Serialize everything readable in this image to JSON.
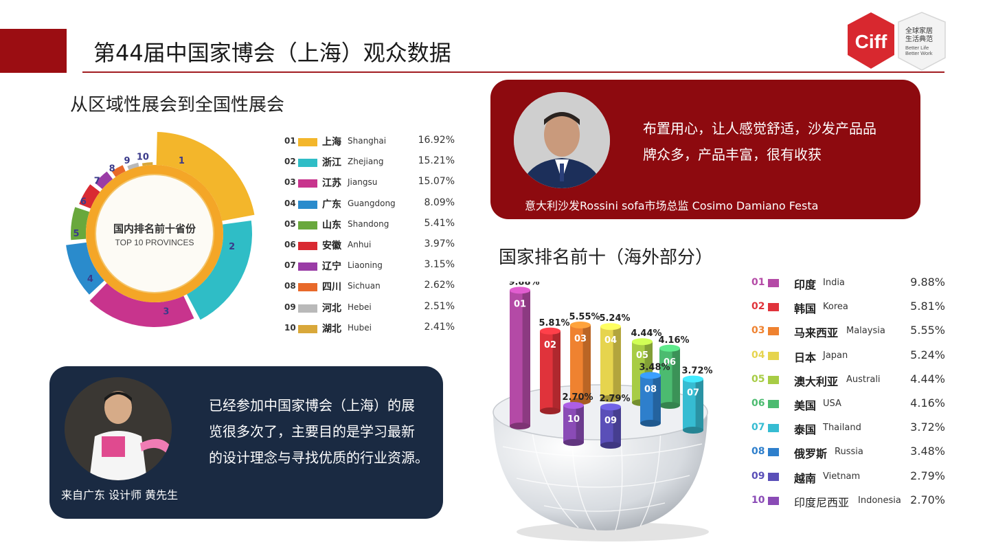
{
  "header": {
    "title": "第44届中国家博会（上海）观众数据",
    "logo": {
      "mark": "Ciff",
      "zh_line1": "全球家居",
      "zh_line2": "生活典范",
      "en_line1": "Better Life",
      "en_line2": "Better Work"
    }
  },
  "provinces_section": {
    "title": "从区域性展会到全国性展会",
    "donut_center_zh": "国内排名前十省份",
    "donut_center_en": "TOP 10 PROVINCES"
  },
  "overseas_section": {
    "title": "国家排名前十（海外部分）"
  },
  "quote_top": {
    "line1": "布置用心，让人感觉舒适，沙发产品品",
    "line2": "牌众多，产品丰富，很有收获",
    "signature": "意大利沙发Rossini sofa市场总监 Cosimo Damiano Festa"
  },
  "quote_bottom": {
    "line1": "已经参加中国家博会（上海）的展",
    "line2": "览很多次了，主要目的是学习最新",
    "line3": "的设计理念与寻找优质的行业资源。",
    "signature": "来自广东 设计师 黄先生"
  },
  "chart_data": [
    {
      "type": "pie",
      "title": "国内排名前十省份 TOP 10 PROVINCES",
      "unit": "%",
      "categories": [
        {
          "rank": "01",
          "label_zh": "上海",
          "label_en": "Shanghai",
          "value": 16.92,
          "pct": "16.92%",
          "color": "#f3b62b"
        },
        {
          "rank": "02",
          "label_zh": "浙江",
          "label_en": "Zhejiang",
          "value": 15.21,
          "pct": "15.21%",
          "color": "#2fbdc6"
        },
        {
          "rank": "03",
          "label_zh": "江苏",
          "label_en": "Jiangsu",
          "value": 15.07,
          "pct": "15.07%",
          "color": "#c8348d"
        },
        {
          "rank": "04",
          "label_zh": "广东",
          "label_en": "Guangdong",
          "value": 8.09,
          "pct": "8.09%",
          "color": "#2a8bcc"
        },
        {
          "rank": "05",
          "label_zh": "山东",
          "label_en": "Shandong",
          "value": 5.41,
          "pct": "5.41%",
          "color": "#69a83c"
        },
        {
          "rank": "06",
          "label_zh": "安徽",
          "label_en": "Anhui",
          "value": 3.97,
          "pct": "3.97%",
          "color": "#d92a32"
        },
        {
          "rank": "07",
          "label_zh": "辽宁",
          "label_en": "Liaoning",
          "value": 3.15,
          "pct": "3.15%",
          "color": "#9a3ca6"
        },
        {
          "rank": "08",
          "label_zh": "四川",
          "label_en": "Sichuan",
          "value": 2.62,
          "pct": "2.62%",
          "color": "#e8692a"
        },
        {
          "rank": "09",
          "label_zh": "河北",
          "label_en": "Hebei",
          "value": 2.51,
          "pct": "2.51%",
          "color": "#b9b9b9"
        },
        {
          "rank": "10",
          "label_zh": "湖北",
          "label_en": "Hubei",
          "value": 2.41,
          "pct": "2.41%",
          "color": "#d9a83a"
        }
      ],
      "slice_labels": [
        "1",
        "2",
        "3",
        "4",
        "5",
        "6",
        "7",
        "8",
        "9",
        "10"
      ],
      "legend": "right"
    },
    {
      "type": "bar",
      "title": "国家排名前十（海外部分）",
      "unit": "%",
      "categories": [
        {
          "rank": "01",
          "label_zh": "印度",
          "label_en": "India",
          "value": 9.88,
          "pct": "9.88%",
          "color": "#b44aa6"
        },
        {
          "rank": "02",
          "label_zh": "韩国",
          "label_en": "Korea",
          "value": 5.81,
          "pct": "5.81%",
          "color": "#e0333b"
        },
        {
          "rank": "03",
          "label_zh": "马来西亚",
          "label_en": "Malaysia",
          "value": 5.55,
          "pct": "5.55%",
          "color": "#ef8230"
        },
        {
          "rank": "04",
          "label_zh": "日本",
          "label_en": "Japan",
          "value": 5.24,
          "pct": "5.24%",
          "color": "#e6d44e"
        },
        {
          "rank": "05",
          "label_zh": "澳大利亚",
          "label_en": "Australi",
          "value": 4.44,
          "pct": "4.44%",
          "color": "#a7cc45"
        },
        {
          "rank": "06",
          "label_zh": "美国",
          "label_en": "USA",
          "value": 4.16,
          "pct": "4.16%",
          "color": "#4cbb70"
        },
        {
          "rank": "07",
          "label_zh": "泰国",
          "label_en": "Thailand",
          "value": 3.72,
          "pct": "3.72%",
          "color": "#36bcd2"
        },
        {
          "rank": "08",
          "label_zh": "俄罗斯",
          "label_en": "Russia",
          "value": 3.48,
          "pct": "3.48%",
          "color": "#2e7fcc"
        },
        {
          "rank": "09",
          "label_zh": "越南",
          "label_en": "Vietnam",
          "value": 2.79,
          "pct": "2.79%",
          "color": "#5a4fb8"
        },
        {
          "rank": "10",
          "label_zh": "印度尼西亚",
          "label_en": "Indonesia",
          "value": 2.7,
          "pct": "2.70%",
          "color": "#8a4bb6"
        }
      ],
      "bar_labels": [
        "01",
        "02",
        "03",
        "04",
        "05",
        "06",
        "07",
        "08",
        "09",
        "10"
      ],
      "legend": "right"
    }
  ]
}
